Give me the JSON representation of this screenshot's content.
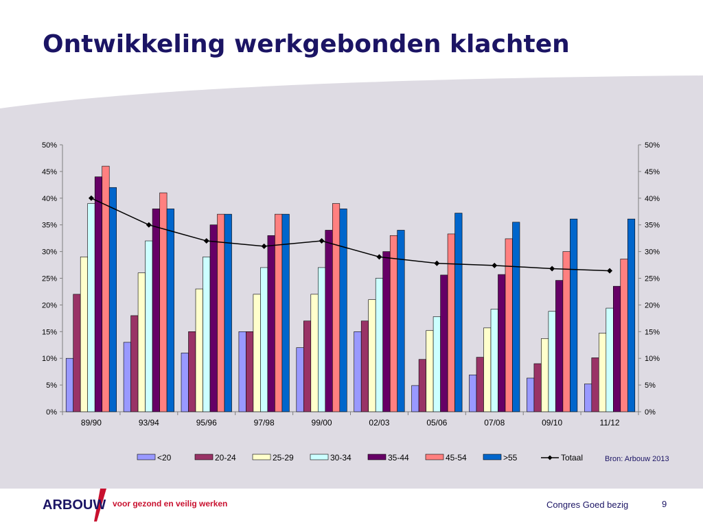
{
  "slide": {
    "title": "Ontwikkeling werkgebonden klachten",
    "source": "Bron: Arbouw 2013",
    "logo_text": "ARBOUW",
    "tagline": "voor gezond en veilig werken",
    "footer_event": "Congres Goed bezig",
    "page_number": "9"
  },
  "colors": {
    "title": "#1b1464",
    "background_band": "#dedbe3",
    "logo_text": "#1b1464",
    "logo_accent": "#c8102e"
  },
  "chart_data": {
    "type": "bar",
    "title": "",
    "xlabel": "",
    "ylabel": "",
    "ylim": [
      0,
      0.5
    ],
    "y_ticks": [
      "0%",
      "5%",
      "10%",
      "15%",
      "20%",
      "25%",
      "30%",
      "35%",
      "40%",
      "45%",
      "50%"
    ],
    "y_tick_values": [
      0,
      0.05,
      0.1,
      0.15,
      0.2,
      0.25,
      0.3,
      0.35,
      0.4,
      0.45,
      0.5
    ],
    "secondary_y_axis": true,
    "grid": false,
    "legend_position": "bottom",
    "categories": [
      "89/90",
      "93/94",
      "95/96",
      "97/98",
      "99/00",
      "02/03",
      "05/06",
      "07/08",
      "09/10",
      "11/12"
    ],
    "series": [
      {
        "name": "<20",
        "kind": "bar",
        "color": "#9999ff",
        "values": [
          0.1,
          0.13,
          0.11,
          0.15,
          0.12,
          0.15,
          0.049,
          0.069,
          0.063,
          0.052
        ]
      },
      {
        "name": "20-24",
        "kind": "bar",
        "color": "#993366",
        "values": [
          0.22,
          0.18,
          0.15,
          0.15,
          0.17,
          0.17,
          0.098,
          0.102,
          0.09,
          0.101
        ]
      },
      {
        "name": "25-29",
        "kind": "bar",
        "color": "#ffffcc",
        "values": [
          0.29,
          0.26,
          0.23,
          0.22,
          0.22,
          0.21,
          0.152,
          0.157,
          0.137,
          0.147
        ]
      },
      {
        "name": "30-34",
        "kind": "bar",
        "color": "#ccffff",
        "values": [
          0.39,
          0.32,
          0.29,
          0.27,
          0.27,
          0.25,
          0.178,
          0.192,
          0.188,
          0.194
        ]
      },
      {
        "name": "35-44",
        "kind": "bar",
        "color": "#660066",
        "values": [
          0.44,
          0.38,
          0.35,
          0.33,
          0.34,
          0.3,
          0.256,
          0.257,
          0.246,
          0.235
        ]
      },
      {
        "name": "45-54",
        "kind": "bar",
        "color": "#ff8080",
        "values": [
          0.46,
          0.41,
          0.37,
          0.37,
          0.39,
          0.33,
          0.333,
          0.324,
          0.3,
          0.286
        ]
      },
      {
        "name": ">55",
        "kind": "bar",
        "color": "#0066cc",
        "values": [
          0.42,
          0.38,
          0.37,
          0.37,
          0.38,
          0.34,
          0.372,
          0.355,
          0.361,
          0.361
        ]
      },
      {
        "name": "Totaal",
        "kind": "line",
        "color": "#000000",
        "values": [
          0.4,
          0.35,
          0.32,
          0.31,
          0.32,
          0.29,
          0.278,
          0.274,
          0.268,
          0.264
        ]
      }
    ]
  }
}
